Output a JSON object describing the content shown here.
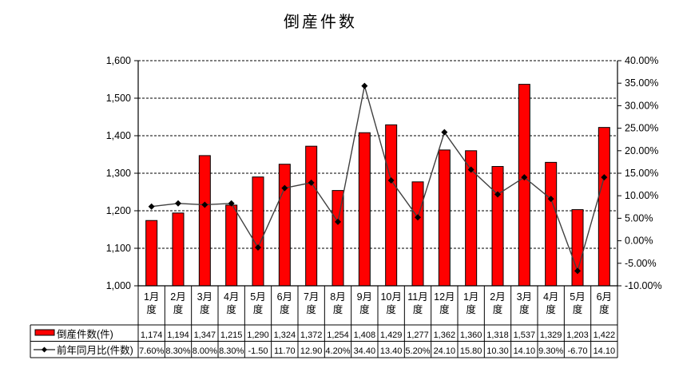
{
  "page": {
    "background": "#ffffff"
  },
  "chart_data": {
    "type": "combo-bar-line",
    "title": "倒産件数",
    "grid": "dashed-horizontal",
    "categories": [
      "1月度",
      "2月度",
      "3月度",
      "4月度",
      "5月度",
      "6月度",
      "7月度",
      "8月度",
      "9月度",
      "10月度",
      "11月度",
      "12月度",
      "1月度",
      "2月度",
      "3月度",
      "4月度",
      "5月度",
      "6月度"
    ],
    "series": [
      {
        "name": "倒産件数(件)",
        "type": "bar",
        "axis": "left",
        "color": "#ff0000",
        "border_color": "#000000",
        "values": [
          1174,
          1194,
          1347,
          1215,
          1290,
          1324,
          1372,
          1254,
          1408,
          1429,
          1277,
          1362,
          1360,
          1318,
          1537,
          1329,
          1203,
          1422
        ]
      },
      {
        "name": "前年同月比(件数)",
        "type": "line",
        "axis": "right",
        "color": "#404040",
        "marker": "diamond",
        "marker_color": "#000000",
        "values": [
          7.6,
          8.3,
          8.0,
          8.3,
          -1.5,
          11.7,
          12.9,
          4.2,
          34.4,
          13.4,
          5.2,
          24.1,
          15.8,
          10.3,
          14.1,
          9.3,
          -6.7,
          14.1
        ]
      }
    ],
    "left_axis": {
      "min": 1000,
      "max": 1600,
      "step": 100,
      "labels": [
        "1,600",
        "1,500",
        "1,400",
        "1,300",
        "1,200",
        "1,100",
        "1,000"
      ]
    },
    "right_axis": {
      "min": -10,
      "max": 40,
      "step": 5,
      "labels": [
        "40.00%",
        "35.00%",
        "30.00%",
        "25.00%",
        "20.00%",
        "15.00%",
        "10.00%",
        "5.00%",
        "0.00%",
        "-5.00%",
        "-10.00%"
      ]
    },
    "table": {
      "rows": [
        {
          "legend": "倒産件数(件)",
          "cells": [
            "1,174",
            "1,194",
            "1,347",
            "1,215",
            "1,290",
            "1,324",
            "1,372",
            "1,254",
            "1,408",
            "1,429",
            "1,277",
            "1,362",
            "1,360",
            "1,318",
            "1,537",
            "1,329",
            "1,203",
            "1,422"
          ]
        },
        {
          "legend": "前年同月比(件数)",
          "cells": [
            "7.60%",
            "8.30%",
            "8.00%",
            "8.30%",
            "-1.50",
            "11.70",
            "12.90",
            "4.20%",
            "34.40",
            "13.40",
            "5.20%",
            "24.10",
            "15.80",
            "10.30",
            "14.10",
            "9.30%",
            "-6.70",
            "14.10"
          ]
        }
      ]
    }
  }
}
